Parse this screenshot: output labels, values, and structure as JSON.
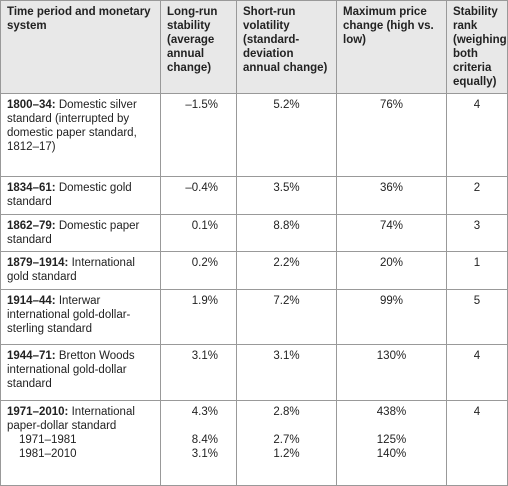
{
  "table": {
    "columns": [
      "Time period and monetary system",
      "Long-run stability (average annual change)",
      "Short-run volatility (standard-deviation annual change)",
      "Maximum price change (high vs. low)",
      "Stability rank (weighing both criteria equally)"
    ],
    "rows": [
      {
        "period": "1800–34:",
        "system": "Domestic silver standard (interrupted by domestic paper standard, 1812–17)",
        "cells": [
          "–1.5%",
          "5.2%",
          "76%",
          "4"
        ]
      },
      {
        "period": "1834–61:",
        "system": "Domestic gold standard",
        "cells": [
          "–0.4%",
          "3.5%",
          "36%",
          "2"
        ]
      },
      {
        "period": "1862–79:",
        "system": "Domestic paper standard",
        "cells": [
          "0.1%",
          "8.8%",
          "74%",
          "3"
        ]
      },
      {
        "period": "1879–1914:",
        "system": "International gold standard",
        "cells": [
          "0.2%",
          "2.2%",
          "20%",
          "1"
        ]
      },
      {
        "period": "1914–44:",
        "system": "Interwar international gold-dollar-sterling standard",
        "cells": [
          "1.9%",
          "7.2%",
          "99%",
          "5"
        ]
      },
      {
        "period": "1944–71:",
        "system": "Bretton Woods international gold-dollar standard",
        "cells": [
          "3.1%",
          "3.1%",
          "130%",
          "4"
        ]
      },
      {
        "period": "1971–2010:",
        "system": "International paper-dollar standard",
        "cells": [
          "4.3%",
          "2.8%",
          "438%",
          "4"
        ],
        "subrows": [
          {
            "label": "1971–1981",
            "cells": [
              "8.4%",
              "2.7%",
              "125%"
            ]
          },
          {
            "label": "1981–2010",
            "cells": [
              "3.1%",
              "1.2%",
              "140%"
            ]
          }
        ]
      }
    ]
  }
}
